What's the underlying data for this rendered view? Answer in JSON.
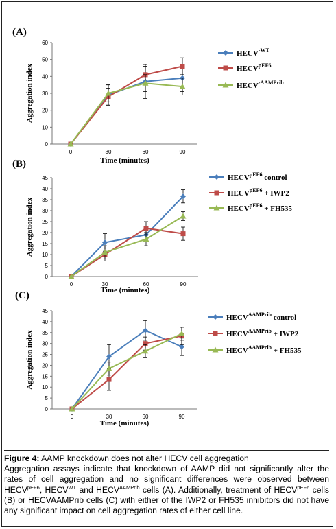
{
  "colors": {
    "blue": "#4a7ebb",
    "red": "#be4b48",
    "green": "#98b954",
    "axis": "#777777"
  },
  "chart_data": [
    {
      "type": "line",
      "panel_label": "(A)",
      "xlabel": "Time (minutes)",
      "ylabel": "Aggregation index",
      "categories": [
        "0",
        "30",
        "60",
        "90"
      ],
      "ylim": [
        0,
        60
      ],
      "yticks": [
        0,
        10,
        20,
        30,
        40,
        50,
        60
      ],
      "series": [
        {
          "name": "HECV",
          "sup": "-WT",
          "suffix": "",
          "color": "#4a7ebb",
          "marker": "diamond",
          "values": [
            0,
            29,
            37,
            39
          ],
          "errors": [
            0,
            6,
            10,
            8
          ]
        },
        {
          "name": "HECV",
          "sup": "pEF6",
          "suffix": "",
          "color": "#be4b48",
          "marker": "square",
          "values": [
            0,
            28,
            41,
            46
          ],
          "errors": [
            0,
            5,
            5,
            5
          ]
        },
        {
          "name": "HECV",
          "sup": "-AAMPrib",
          "suffix": "",
          "color": "#98b954",
          "marker": "triangle",
          "values": [
            0,
            30,
            36,
            34
          ],
          "errors": [
            0,
            5,
            5,
            5
          ]
        }
      ]
    },
    {
      "type": "line",
      "panel_label": "(B)",
      "xlabel": "Time (minutes)",
      "ylabel": "Aggregation index",
      "categories": [
        "0",
        "30",
        "60",
        "90"
      ],
      "ylim": [
        0,
        45
      ],
      "yticks": [
        0,
        5,
        10,
        15,
        20,
        25,
        30,
        35,
        40,
        45
      ],
      "series": [
        {
          "name": "HECV",
          "sup": "pEF6",
          "suffix": " control",
          "color": "#4a7ebb",
          "marker": "diamond",
          "values": [
            0,
            15.5,
            19,
            36.5
          ],
          "errors": [
            0,
            4,
            3,
            3
          ]
        },
        {
          "name": "HECV",
          "sup": "pEF6",
          "suffix": " + IWP2",
          "color": "#be4b48",
          "marker": "square",
          "values": [
            0,
            10,
            22,
            19.5
          ],
          "errors": [
            0,
            3,
            3,
            3
          ]
        },
        {
          "name": "HECV",
          "sup": "pEF6",
          "suffix": " + FH535",
          "color": "#98b954",
          "marker": "triangle",
          "values": [
            0,
            11,
            17,
            27.5
          ],
          "errors": [
            0,
            3,
            3,
            2
          ]
        }
      ]
    },
    {
      "type": "line",
      "panel_label": "(C)",
      "xlabel": "Time (minutes)",
      "ylabel": "Aggregation index",
      "categories": [
        "0",
        "30",
        "60",
        "90"
      ],
      "ylim": [
        0,
        45
      ],
      "yticks": [
        0,
        5,
        10,
        15,
        20,
        25,
        30,
        35,
        40,
        45
      ],
      "series": [
        {
          "name": "HECV",
          "sup": "AAMPrib",
          "suffix": " control",
          "color": "#4a7ebb",
          "marker": "diamond",
          "values": [
            0,
            24,
            36,
            28.5
          ],
          "errors": [
            0,
            5.5,
            4.5,
            4
          ]
        },
        {
          "name": "HECV",
          "sup": "AAMPrib",
          "suffix": " + IWP2",
          "color": "#be4b48",
          "marker": "square",
          "values": [
            0,
            13.5,
            30,
            33.5
          ],
          "errors": [
            0,
            5,
            3,
            4
          ]
        },
        {
          "name": "HECV",
          "sup": "AAMPrib",
          "suffix": " + FH535",
          "color": "#98b954",
          "marker": "triangle",
          "values": [
            0,
            18.5,
            26.5,
            34.5
          ],
          "errors": [
            0,
            3,
            3,
            3
          ]
        }
      ]
    }
  ],
  "caption": {
    "label": "Figure 4:",
    "title": " AAMP knockdown does not alter HECV cell aggregation",
    "p1": "Aggregation assays indicate that knockdown of AAMP did not significantly alter the rates of cell aggregation and no significant differences were observed between HECV",
    "sup1": "pEF6",
    "p2": ", HECV",
    "sup2": "WT",
    "p3": " and HECV",
    "sup3": "AAMPrib",
    "p4": " cells (A). Additionally, treatment of HECV",
    "sup4": "pEF6",
    "p5": " cells (B) or HECVAAMPrib cells (C) with either of the IWP2 or FH535 inhibitors did not have any significant impact on cell aggregation rates of either cell line."
  }
}
